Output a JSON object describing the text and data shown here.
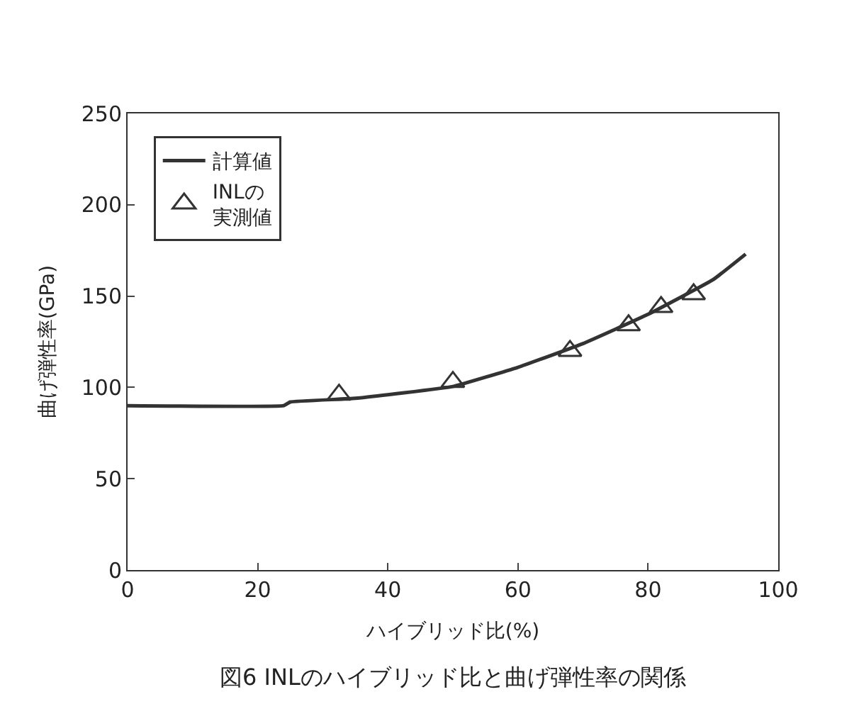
{
  "chart_data": {
    "type": "line",
    "title": "図6 INLのハイブリッド比と曲げ弾性率の関係",
    "xlabel": "ハイブリッド比(%)",
    "ylabel": "曲げ弾性率(GPa)",
    "series": [
      {
        "name": "計算値",
        "color": "#333333",
        "marker": "none",
        "line_style": "solid",
        "x": [
          0,
          24,
          25,
          35,
          50,
          60,
          70,
          80,
          90,
          95
        ],
        "values": [
          90,
          90,
          92,
          94,
          100.5,
          111,
          124,
          140,
          159,
          173
        ]
      },
      {
        "name": "INLの実測値",
        "type": "scatter",
        "color": "#333333",
        "marker": "triangle",
        "x": [
          32.5,
          50,
          68,
          77,
          82,
          87
        ],
        "values": [
          96,
          103,
          120,
          134,
          144,
          151
        ]
      }
    ],
    "xlim": [
      0,
      100
    ],
    "ylim": [
      0,
      250
    ],
    "xticks": [
      0,
      20,
      40,
      60,
      80,
      100
    ],
    "yticks": [
      0,
      50,
      100,
      150,
      200,
      250
    ],
    "legend": "top left"
  }
}
